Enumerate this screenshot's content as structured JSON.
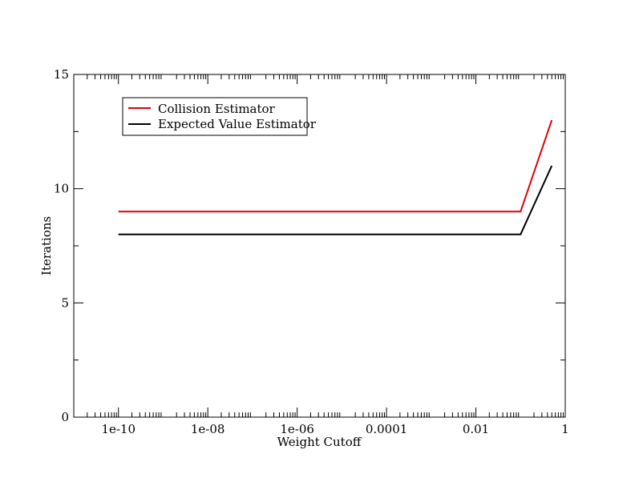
{
  "chart_data": {
    "type": "line",
    "title": "",
    "xlabel": "Weight Cutoff",
    "ylabel": "Iterations",
    "xscale": "log",
    "xlim": [
      1e-11,
      1
    ],
    "ylim": [
      0,
      15
    ],
    "x_ticks": [
      {
        "value": 1e-10,
        "label": "1e-10"
      },
      {
        "value": 1e-08,
        "label": "1e-08"
      },
      {
        "value": 1e-06,
        "label": "1e-06"
      },
      {
        "value": 0.0001,
        "label": "0.0001"
      },
      {
        "value": 0.01,
        "label": "0.01"
      },
      {
        "value": 1,
        "label": "1"
      }
    ],
    "y_ticks": [
      {
        "value": 0,
        "label": "0"
      },
      {
        "value": 5,
        "label": "5"
      },
      {
        "value": 10,
        "label": "10"
      },
      {
        "value": 15,
        "label": "15"
      }
    ],
    "y_minor_step": 2.5,
    "grid": false,
    "legend_position": "top-left",
    "series": [
      {
        "name": "Collision Estimator",
        "color": "#e00000",
        "points": [
          [
            1e-10,
            9
          ],
          [
            0.1,
            9
          ],
          [
            0.5,
            13
          ]
        ]
      },
      {
        "name": "Expected Value Estimator",
        "color": "#000000",
        "points": [
          [
            1e-10,
            8
          ],
          [
            0.1,
            8
          ],
          [
            0.5,
            11
          ]
        ]
      }
    ]
  }
}
